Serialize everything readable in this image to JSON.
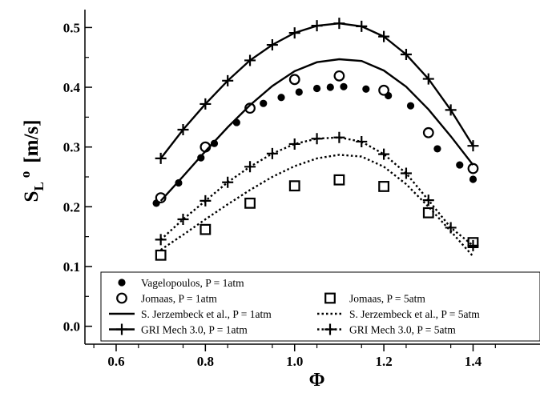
{
  "chart_data": {
    "type": "line",
    "title": "",
    "xlabel": "Φ",
    "ylabel": {
      "main": "S",
      "sub": "L",
      "sup": "o",
      "unit": "[m/s]"
    },
    "xlim": [
      0.53,
      1.55
    ],
    "ylim": [
      -0.03,
      0.53
    ],
    "x_ticks": [
      0.6,
      0.8,
      1.0,
      1.2,
      1.4
    ],
    "x_tick_labels": [
      "0.6",
      "0.8",
      "1.0",
      "1.2",
      "1.4"
    ],
    "y_ticks": [
      0.0,
      0.1,
      0.2,
      0.3,
      0.4,
      0.5
    ],
    "y_tick_labels": [
      "0.0",
      "0.1",
      "0.2",
      "0.3",
      "0.4",
      "0.5"
    ],
    "grid": false,
    "legend_position": "bottom",
    "series": [
      {
        "name": "Vagelopoulos, P = 1atm",
        "style": "filled-circle",
        "x": [
          0.69,
          0.74,
          0.79,
          0.82,
          0.87,
          0.93,
          0.97,
          1.01,
          1.05,
          1.08,
          1.11,
          1.16,
          1.21,
          1.26,
          1.3,
          1.32,
          1.37,
          1.4
        ],
        "y": [
          0.206,
          0.24,
          0.282,
          0.306,
          0.341,
          0.373,
          0.383,
          0.392,
          0.398,
          0.4,
          0.401,
          0.397,
          0.386,
          0.369,
          0.326,
          0.297,
          0.27,
          0.246
        ]
      },
      {
        "name": "Jomaas, P = 1atm",
        "style": "open-circle",
        "x": [
          0.7,
          0.8,
          0.9,
          1.0,
          1.1,
          1.2,
          1.3,
          1.4
        ],
        "y": [
          0.215,
          0.3,
          0.365,
          0.413,
          0.419,
          0.395,
          0.324,
          0.264
        ]
      },
      {
        "name": "Jomaas, P = 5atm",
        "style": "open-square",
        "x": [
          0.7,
          0.8,
          0.9,
          1.0,
          1.1,
          1.2,
          1.3,
          1.4
        ],
        "y": [
          0.119,
          0.162,
          0.206,
          0.235,
          0.245,
          0.234,
          0.19,
          0.14
        ]
      },
      {
        "name": "S. Jerzembeck et al., P = 1atm",
        "style": "solid-line",
        "x": [
          0.7,
          0.75,
          0.8,
          0.85,
          0.9,
          0.95,
          1.0,
          1.05,
          1.1,
          1.15,
          1.2,
          1.25,
          1.3,
          1.35,
          1.4
        ],
        "y": [
          0.21,
          0.251,
          0.293,
          0.333,
          0.37,
          0.402,
          0.427,
          0.442,
          0.447,
          0.444,
          0.428,
          0.401,
          0.363,
          0.318,
          0.27
        ]
      },
      {
        "name": "S. Jerzembeck et al., P = 5atm",
        "style": "dotted-line",
        "x": [
          0.7,
          0.75,
          0.8,
          0.85,
          0.9,
          0.95,
          1.0,
          1.05,
          1.1,
          1.15,
          1.2,
          1.25,
          1.3,
          1.35,
          1.4
        ],
        "y": [
          0.128,
          0.153,
          0.179,
          0.204,
          0.228,
          0.25,
          0.268,
          0.281,
          0.287,
          0.284,
          0.267,
          0.238,
          0.2,
          0.159,
          0.117
        ]
      },
      {
        "name": "GRI Mech 3.0, P = 1atm",
        "style": "solid-line-plus",
        "x": [
          0.7,
          0.75,
          0.8,
          0.85,
          0.9,
          0.95,
          1.0,
          1.05,
          1.1,
          1.15,
          1.2,
          1.25,
          1.3,
          1.35,
          1.4
        ],
        "y": [
          0.281,
          0.329,
          0.372,
          0.411,
          0.445,
          0.471,
          0.491,
          0.503,
          0.507,
          0.502,
          0.485,
          0.455,
          0.414,
          0.362,
          0.302
        ]
      },
      {
        "name": "GRI Mech 3.0, P = 5atm",
        "style": "dotted-line-plus",
        "x": [
          0.7,
          0.75,
          0.8,
          0.85,
          0.9,
          0.95,
          1.0,
          1.05,
          1.1,
          1.15,
          1.2,
          1.25,
          1.3,
          1.35,
          1.4
        ],
        "y": [
          0.145,
          0.179,
          0.21,
          0.241,
          0.267,
          0.289,
          0.305,
          0.314,
          0.316,
          0.309,
          0.288,
          0.256,
          0.211,
          0.165,
          0.135
        ]
      }
    ],
    "legend_rows": [
      [
        "Vagelopoulos, P = 1atm"
      ],
      [
        "Jomaas, P = 1atm",
        "Jomaas, P = 5atm"
      ],
      [
        "S. Jerzembeck et al., P = 1atm",
        "S. Jerzembeck et al., P = 5atm"
      ],
      [
        "GRI Mech 3.0, P = 1atm",
        "GRI Mech 3.0, P = 5atm"
      ]
    ]
  }
}
